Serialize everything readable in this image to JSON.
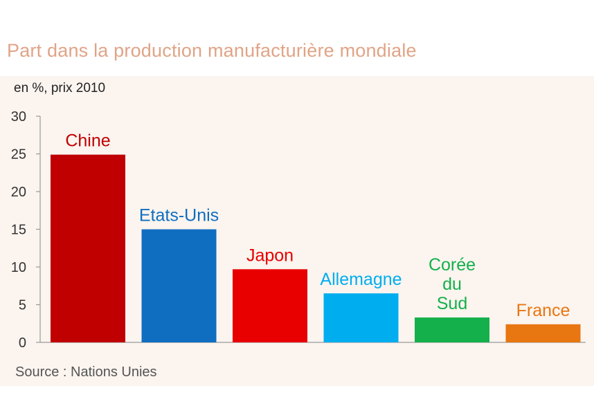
{
  "title": "Part dans la production manufacturière mondiale",
  "unit_label": "en %, prix 2010",
  "source": "Source : Nations Unies",
  "chart_data": {
    "type": "bar",
    "title": "Part dans la production manufacturière mondiale",
    "ylabel": "en %, prix 2010",
    "ylim": [
      0,
      30
    ],
    "yticks": [
      0,
      5,
      10,
      15,
      20,
      25,
      30
    ],
    "grid": false,
    "categories": [
      [
        "Chine"
      ],
      [
        "Etats-Unis"
      ],
      [
        "Japon"
      ],
      [
        "Allemagne"
      ],
      [
        "Corée",
        "du",
        "Sud"
      ],
      [
        "France"
      ]
    ],
    "values": [
      24.9,
      15.0,
      9.7,
      6.5,
      3.3,
      2.4
    ],
    "colors": [
      "#c00000",
      "#0f6ec0",
      "#e80000",
      "#00aeef",
      "#13b04b",
      "#e87611"
    ]
  }
}
